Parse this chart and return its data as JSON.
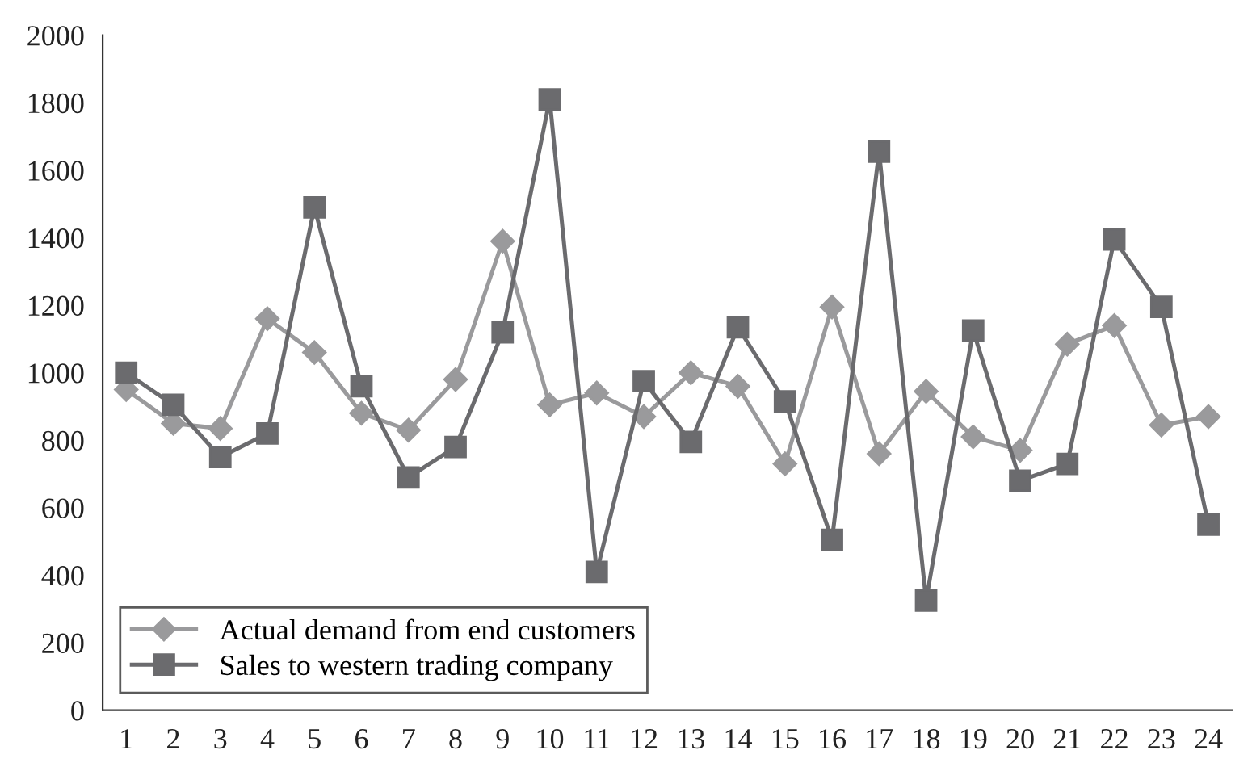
{
  "chart_data": {
    "type": "line",
    "categories": [
      "1",
      "2",
      "3",
      "4",
      "5",
      "6",
      "7",
      "8",
      "9",
      "10",
      "11",
      "12",
      "13",
      "14",
      "15",
      "16",
      "17",
      "18",
      "19",
      "20",
      "21",
      "22",
      "23",
      "24"
    ],
    "series": [
      {
        "name": "Actual demand from end customers",
        "color": "#9a9a9c",
        "marker": "diamond",
        "values": [
          950,
          850,
          835,
          1160,
          1060,
          880,
          830,
          980,
          1390,
          905,
          940,
          870,
          1000,
          960,
          730,
          1195,
          760,
          945,
          810,
          770,
          1085,
          1140,
          845,
          870
        ]
      },
      {
        "name": "Sales to western trading company",
        "color": "#6b6b6e",
        "marker": "square",
        "values": [
          1000,
          905,
          750,
          820,
          1490,
          960,
          690,
          780,
          1120,
          1810,
          410,
          975,
          795,
          1135,
          915,
          505,
          1655,
          325,
          1125,
          680,
          730,
          1395,
          1195,
          550
        ]
      }
    ],
    "ylim": [
      0,
      2000
    ],
    "yticks": [
      0,
      200,
      400,
      600,
      800,
      1000,
      1200,
      1400,
      1600,
      1800,
      2000
    ],
    "grid": false,
    "legend": "bottom left",
    "line_style": "solid"
  }
}
